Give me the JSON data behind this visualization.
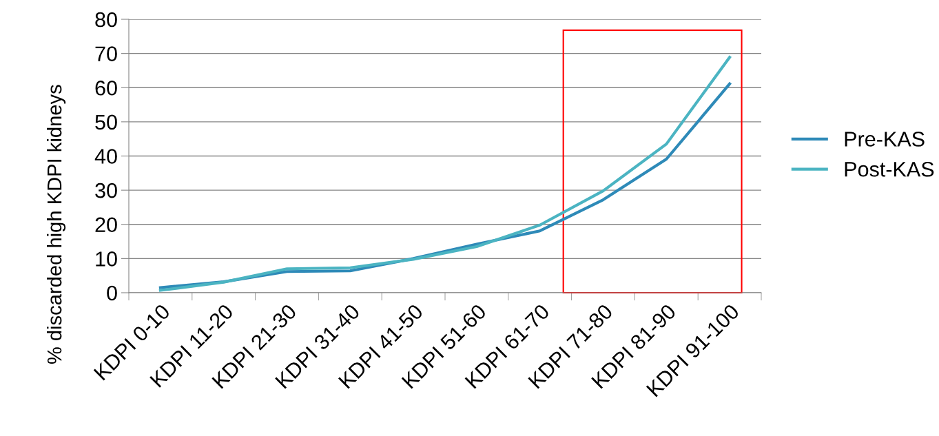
{
  "chart_data": {
    "type": "line",
    "ylabel": "% discarded high KDPI kidneys",
    "categories": [
      "KDPI 0-10",
      "KDPI 11-20",
      "KDPI 21-30",
      "KDPI 31-40",
      "KDPI 41-50",
      "KDPI 51-60",
      "KDPI 61-70",
      "KDPI 71-80",
      "KDPI 81-90",
      "KDPI 91-100"
    ],
    "series": [
      {
        "name": "Pre-KAS",
        "color": "#2e8ab8",
        "values": [
          1.5,
          3.2,
          6.2,
          6.4,
          10,
          14.2,
          18.1,
          27.2,
          39.1,
          61.1
        ]
      },
      {
        "name": "Post-KAS",
        "color": "#4bb4c2",
        "values": [
          0.7,
          3.1,
          7.0,
          7.3,
          9.8,
          13.5,
          19.8,
          29.8,
          43.5,
          68.9
        ]
      }
    ],
    "ylim": [
      0,
      80
    ],
    "yticks": [
      0,
      10,
      20,
      30,
      40,
      50,
      60,
      70,
      80
    ],
    "grid": "y",
    "legend": "right",
    "marker": "none"
  }
}
